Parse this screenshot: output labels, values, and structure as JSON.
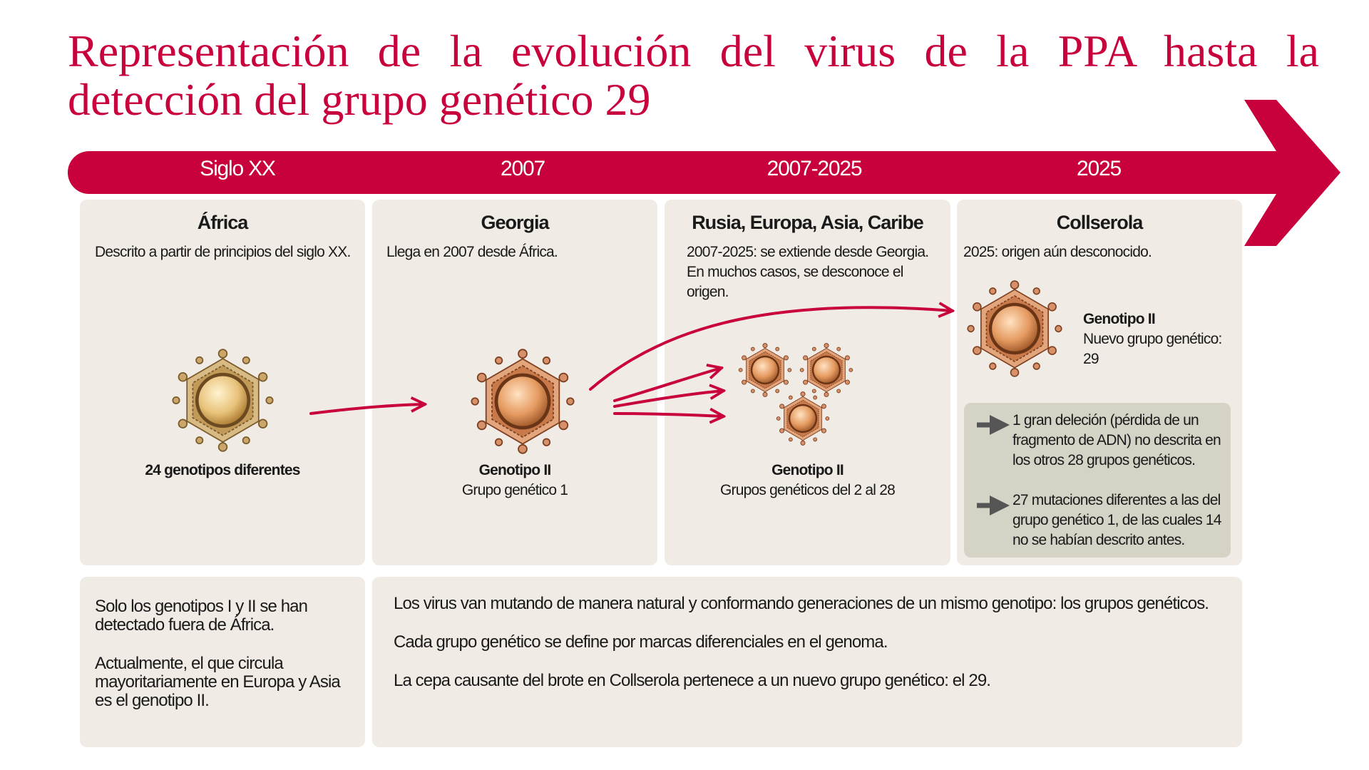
{
  "title": "Representación de la evolución del virus de la PPA hasta la detección del grupo genético 29",
  "timeline": [
    "Siglo XX",
    "2007",
    "2007-2025",
    "2025"
  ],
  "stages": [
    {
      "heading": "África",
      "description": "Descrito a partir de principios del siglo XX.",
      "caption": "24 genotipos diferentes"
    },
    {
      "heading": "Georgia",
      "description": "Llega en 2007 desde África.",
      "genotype": "Genotipo II",
      "group": "Grupo genético 1"
    },
    {
      "heading": "Rusia, Europa, Asia, Caribe",
      "description": "2007-2025: se extiende desde Georgia. En muchos casos, se desconoce el origen.",
      "genotype": "Genotipo II",
      "group": "Grupos genéticos del 2 al 28"
    },
    {
      "heading": "Collserola",
      "description": "2025: origen aún desconocido.",
      "genotype": "Genotipo II",
      "group": "Nuevo grupo genético: 29",
      "findings": [
        "1 gran deleción (pérdida de un fragmento de ADN) no descrita en los otros 28 grupos genéticos.",
        "27 mutaciones diferentes a las del grupo genético 1, de las cuales 14 no se habían descrito antes."
      ]
    }
  ],
  "notes_left": [
    "Solo los genotipos I y II se han detectado fuera de África.",
    "Actualmente, el que circula mayoritariamente en Europa y Asia es el genotipo II."
  ],
  "notes_right": [
    "Los virus van mutando de manera natural y conformando generaciones de un mismo genotipo: los grupos genéticos.",
    "Cada grupo genético se define por marcas diferenciales en el genoma.",
    "La cepa causante del brote en Collserola pertenece a un nuevo grupo genético: el 29."
  ]
}
